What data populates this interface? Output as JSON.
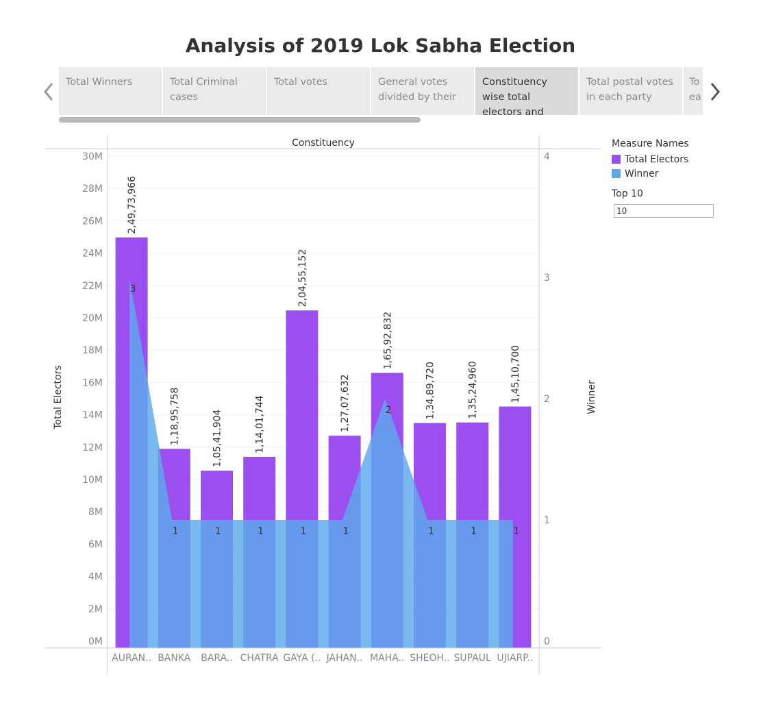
{
  "title": "Analysis of 2019 Lok Sabha Election",
  "tabs": [
    {
      "label": "Total Winners",
      "active": false
    },
    {
      "label": "Total Criminal cases",
      "active": false
    },
    {
      "label": "Total votes",
      "active": false
    },
    {
      "label": "General votes divided by their",
      "active": false
    },
    {
      "label": "Constituency wise total electors and",
      "active": true
    },
    {
      "label": "Total postal votes in each party",
      "active": false
    },
    {
      "label": "To ea",
      "active": false
    }
  ],
  "nav": {
    "prev_icon": "chevron-left-icon",
    "next_icon": "chevron-right-icon"
  },
  "legend": {
    "title": "Measure Names",
    "items": [
      {
        "label": "Total Electors",
        "color": "#9b4fef"
      },
      {
        "label": "Winner",
        "color": "#5ba9ec"
      }
    ]
  },
  "parameter": {
    "label": "Top 10",
    "value": "10"
  },
  "chart_data": {
    "type": "bar",
    "header": "Constituency",
    "categories": [
      "AURAN..",
      "BANKA",
      "BARA..",
      "CHATRA",
      "GAYA (..",
      "JAHAN..",
      "MAHA..",
      "SHEOH..",
      "SUPAUL",
      "UJIARP.."
    ],
    "series": [
      {
        "name": "Total Electors",
        "type": "bar",
        "axis": "left",
        "color": "#9b4fef",
        "values": [
          24973966,
          11895758,
          10541904,
          11401744,
          20455152,
          12707632,
          16592832,
          13489720,
          13524960,
          14510700
        ],
        "labels": [
          "2,49,73,966",
          "1,18,95,758",
          "1,05,41,904",
          "1,14,01,744",
          "2,04,55,152",
          "1,27,07,632",
          "1,65,92,832",
          "1,34,89,720",
          "1,35,24,960",
          "1,45,10,700"
        ]
      },
      {
        "name": "Winner",
        "type": "area",
        "axis": "right",
        "color": "#5ba9ec",
        "values": [
          3,
          1,
          1,
          1,
          1,
          1,
          2,
          1,
          1,
          1
        ],
        "labels": [
          "3",
          "1",
          "1",
          "1",
          "1",
          "1",
          "2",
          "1",
          "1",
          "1"
        ]
      }
    ],
    "ylabel": "Total Electors",
    "y2label": "Winner",
    "ylim": [
      0,
      30000000
    ],
    "y2lim": [
      0,
      4
    ],
    "yticks": [
      "0M",
      "2M",
      "4M",
      "6M",
      "8M",
      "10M",
      "12M",
      "14M",
      "16M",
      "18M",
      "20M",
      "22M",
      "24M",
      "26M",
      "28M",
      "30M"
    ],
    "y2ticks": [
      "0",
      "1",
      "2",
      "3",
      "4"
    ],
    "grid": true
  }
}
